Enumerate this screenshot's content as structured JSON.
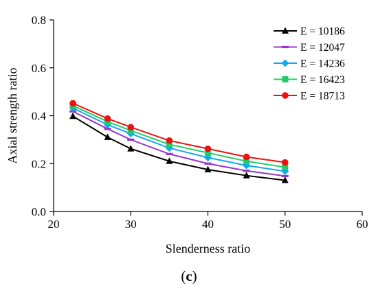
{
  "chart_data": {
    "type": "line",
    "title": "",
    "xlabel": "Slenderness ratio",
    "ylabel": "Axial strength ratio",
    "xlim": [
      20,
      60
    ],
    "ylim": [
      0,
      0.8
    ],
    "xticks": [
      "20",
      "30",
      "40",
      "50",
      "60"
    ],
    "yticks": [
      "0.0",
      "0.2",
      "0.4",
      "0.6",
      "0.8"
    ],
    "grid": false,
    "legend_position": "top-right",
    "x": [
      22.5,
      27,
      30,
      35,
      40,
      45,
      50
    ],
    "series": [
      {
        "name": "E = 10186",
        "color": "#000000",
        "marker": "triangle",
        "values": [
          0.398,
          0.31,
          0.262,
          0.21,
          0.175,
          0.15,
          0.13
        ]
      },
      {
        "name": "E = 12047",
        "color": "#9933cc",
        "marker": "dash",
        "values": [
          0.418,
          0.345,
          0.3,
          0.24,
          0.2,
          0.17,
          0.148
        ]
      },
      {
        "name": "E = 14236",
        "color": "#11a8ee",
        "marker": "diamond",
        "values": [
          0.432,
          0.362,
          0.325,
          0.265,
          0.225,
          0.192,
          0.168
        ]
      },
      {
        "name": "E = 16423",
        "color": "#22cc66",
        "marker": "square",
        "values": [
          0.442,
          0.375,
          0.338,
          0.28,
          0.245,
          0.21,
          0.185
        ]
      },
      {
        "name": "E = 18713",
        "color": "#ee1111",
        "marker": "circle",
        "values": [
          0.452,
          0.388,
          0.352,
          0.296,
          0.262,
          0.228,
          0.205
        ]
      }
    ]
  },
  "caption": {
    "open": "(",
    "letter": "c",
    "close": ")"
  }
}
